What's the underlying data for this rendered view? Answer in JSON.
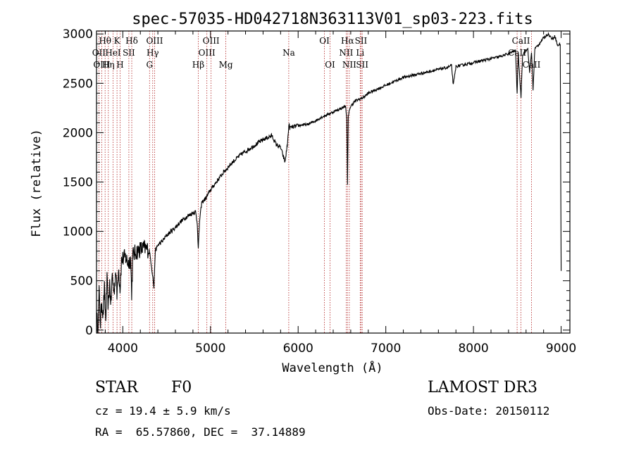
{
  "chart_data": {
    "type": "line",
    "title": "spec-57035-HD042718N363113V01_sp03-223.fits",
    "xlabel": "Wavelength (Å)",
    "ylabel": "Flux (relative)",
    "xlim": [
      3700,
      9100
    ],
    "ylim": [
      -30,
      3030
    ],
    "x_ticks": [
      4000,
      5000,
      6000,
      7000,
      8000,
      9000
    ],
    "y_ticks": [
      0,
      500,
      1000,
      1500,
      2000,
      2500,
      3000
    ],
    "grid": false,
    "series": [
      {
        "name": "flux",
        "x": [
          3700,
          3715,
          3730,
          3745,
          3760,
          3775,
          3790,
          3805,
          3820,
          3835,
          3850,
          3865,
          3880,
          3900,
          3920,
          3933,
          3950,
          3968,
          3985,
          4000,
          4030,
          4060,
          4090,
          4101,
          4115,
          4150,
          4200,
          4250,
          4300,
          4320,
          4340,
          4355,
          4370,
          4400,
          4450,
          4500,
          4550,
          4600,
          4650,
          4700,
          4750,
          4800,
          4830,
          4850,
          4861,
          4875,
          4900,
          4950,
          5000,
          5050,
          5100,
          5150,
          5200,
          5250,
          5300,
          5350,
          5400,
          5450,
          5500,
          5550,
          5600,
          5650,
          5700,
          5750,
          5800,
          5850,
          5880,
          5893,
          5905,
          5950,
          6000,
          6050,
          6100,
          6150,
          6200,
          6250,
          6300,
          6350,
          6400,
          6450,
          6500,
          6540,
          6555,
          6563,
          6572,
          6590,
          6620,
          6650,
          6700,
          6750,
          6800,
          6900,
          7000,
          7100,
          7200,
          7300,
          7400,
          7500,
          7600,
          7700,
          7750,
          7770,
          7800,
          7900,
          8000,
          8100,
          8200,
          8300,
          8400,
          8450,
          8480,
          8498,
          8510,
          8542,
          8560,
          8600,
          8620,
          8640,
          8662,
          8680,
          8700,
          8750,
          8800,
          8850,
          8880,
          8900,
          8930,
          8960,
          8990,
          9000
        ],
        "y": [
          150,
          20,
          380,
          60,
          300,
          140,
          420,
          90,
          500,
          220,
          480,
          260,
          560,
          380,
          620,
          340,
          650,
          420,
          700,
          720,
          740,
          680,
          720,
          380,
          760,
          790,
          820,
          830,
          810,
          700,
          560,
          430,
          800,
          860,
          900,
          960,
          1000,
          1040,
          1090,
          1130,
          1160,
          1190,
          1200,
          1080,
          820,
          1100,
          1290,
          1340,
          1420,
          1480,
          1540,
          1600,
          1650,
          1700,
          1740,
          1780,
          1810,
          1840,
          1870,
          1900,
          1930,
          1950,
          1970,
          1880,
          1850,
          1700,
          1900,
          2080,
          2050,
          2060,
          2070,
          2080,
          2080,
          2100,
          2120,
          2150,
          2170,
          2190,
          2210,
          2230,
          2250,
          2270,
          2150,
          1460,
          2160,
          2250,
          2290,
          2320,
          2340,
          2360,
          2400,
          2440,
          2480,
          2520,
          2560,
          2580,
          2600,
          2620,
          2640,
          2660,
          2680,
          2480,
          2670,
          2690,
          2710,
          2730,
          2750,
          2770,
          2800,
          2820,
          2830,
          2400,
          2800,
          2360,
          2790,
          2830,
          2850,
          2600,
          2820,
          2430,
          2850,
          2900,
          2960,
          3000,
          2970,
          2950,
          2980,
          2880,
          2900,
          600
        ]
      }
    ],
    "spectral_lines": [
      {
        "label": "Hθ",
        "x": 3798,
        "row": 1
      },
      {
        "label": "OII",
        "x": 3727,
        "row": 2
      },
      {
        "label": "OIII",
        "x": 3760,
        "row": 3
      },
      {
        "label": "K",
        "x": 3934,
        "row": 1
      },
      {
        "label": "HeI",
        "x": 3889,
        "row": 2
      },
      {
        "label": "Hη",
        "x": 3835,
        "row": 3
      },
      {
        "label": "Hδ",
        "x": 4102,
        "row": 1
      },
      {
        "label": "SII",
        "x": 4069,
        "row": 2
      },
      {
        "label": "H",
        "x": 3969,
        "row": 3
      },
      {
        "label": "OIII",
        "x": 4363,
        "row": 1
      },
      {
        "label": "Hγ",
        "x": 4341,
        "row": 2
      },
      {
        "label": "G",
        "x": 4305,
        "row": 3
      },
      {
        "label": "OIII",
        "x": 5007,
        "row": 1
      },
      {
        "label": "OIII",
        "x": 4959,
        "row": 2
      },
      {
        "label": "Hβ",
        "x": 4861,
        "row": 3
      },
      {
        "label": "Mg",
        "x": 5175,
        "row": 3
      },
      {
        "label": "Na",
        "x": 5893,
        "row": 2
      },
      {
        "label": "OI",
        "x": 6300,
        "row": 1
      },
      {
        "label": "OI",
        "x": 6364,
        "row": 3
      },
      {
        "label": "Hα",
        "x": 6563,
        "row": 1
      },
      {
        "label": "NII",
        "x": 6548,
        "row": 2
      },
      {
        "label": "NII",
        "x": 6584,
        "row": 3
      },
      {
        "label": "SII",
        "x": 6717,
        "row": 1
      },
      {
        "label": "Li",
        "x": 6708,
        "row": 2
      },
      {
        "label": "SII",
        "x": 6731,
        "row": 3
      },
      {
        "label": "CaII",
        "x": 8542,
        "row": 1
      },
      {
        "label": "CaII",
        "x": 8498,
        "row": 2
      },
      {
        "label": "CaII",
        "x": 8662,
        "row": 3
      }
    ]
  },
  "info": {
    "object_type": "STAR",
    "subclass": "F0",
    "survey": "LAMOST DR3",
    "cz": "cz = 19.4 ± 5.9 km/s",
    "obs_date": "Obs-Date: 20150112",
    "coords": "RA =  65.57860, DEC =  37.14889"
  },
  "colors": {
    "line_marker": "#b22222",
    "spectrum": "#000000",
    "axes": "#000000"
  }
}
